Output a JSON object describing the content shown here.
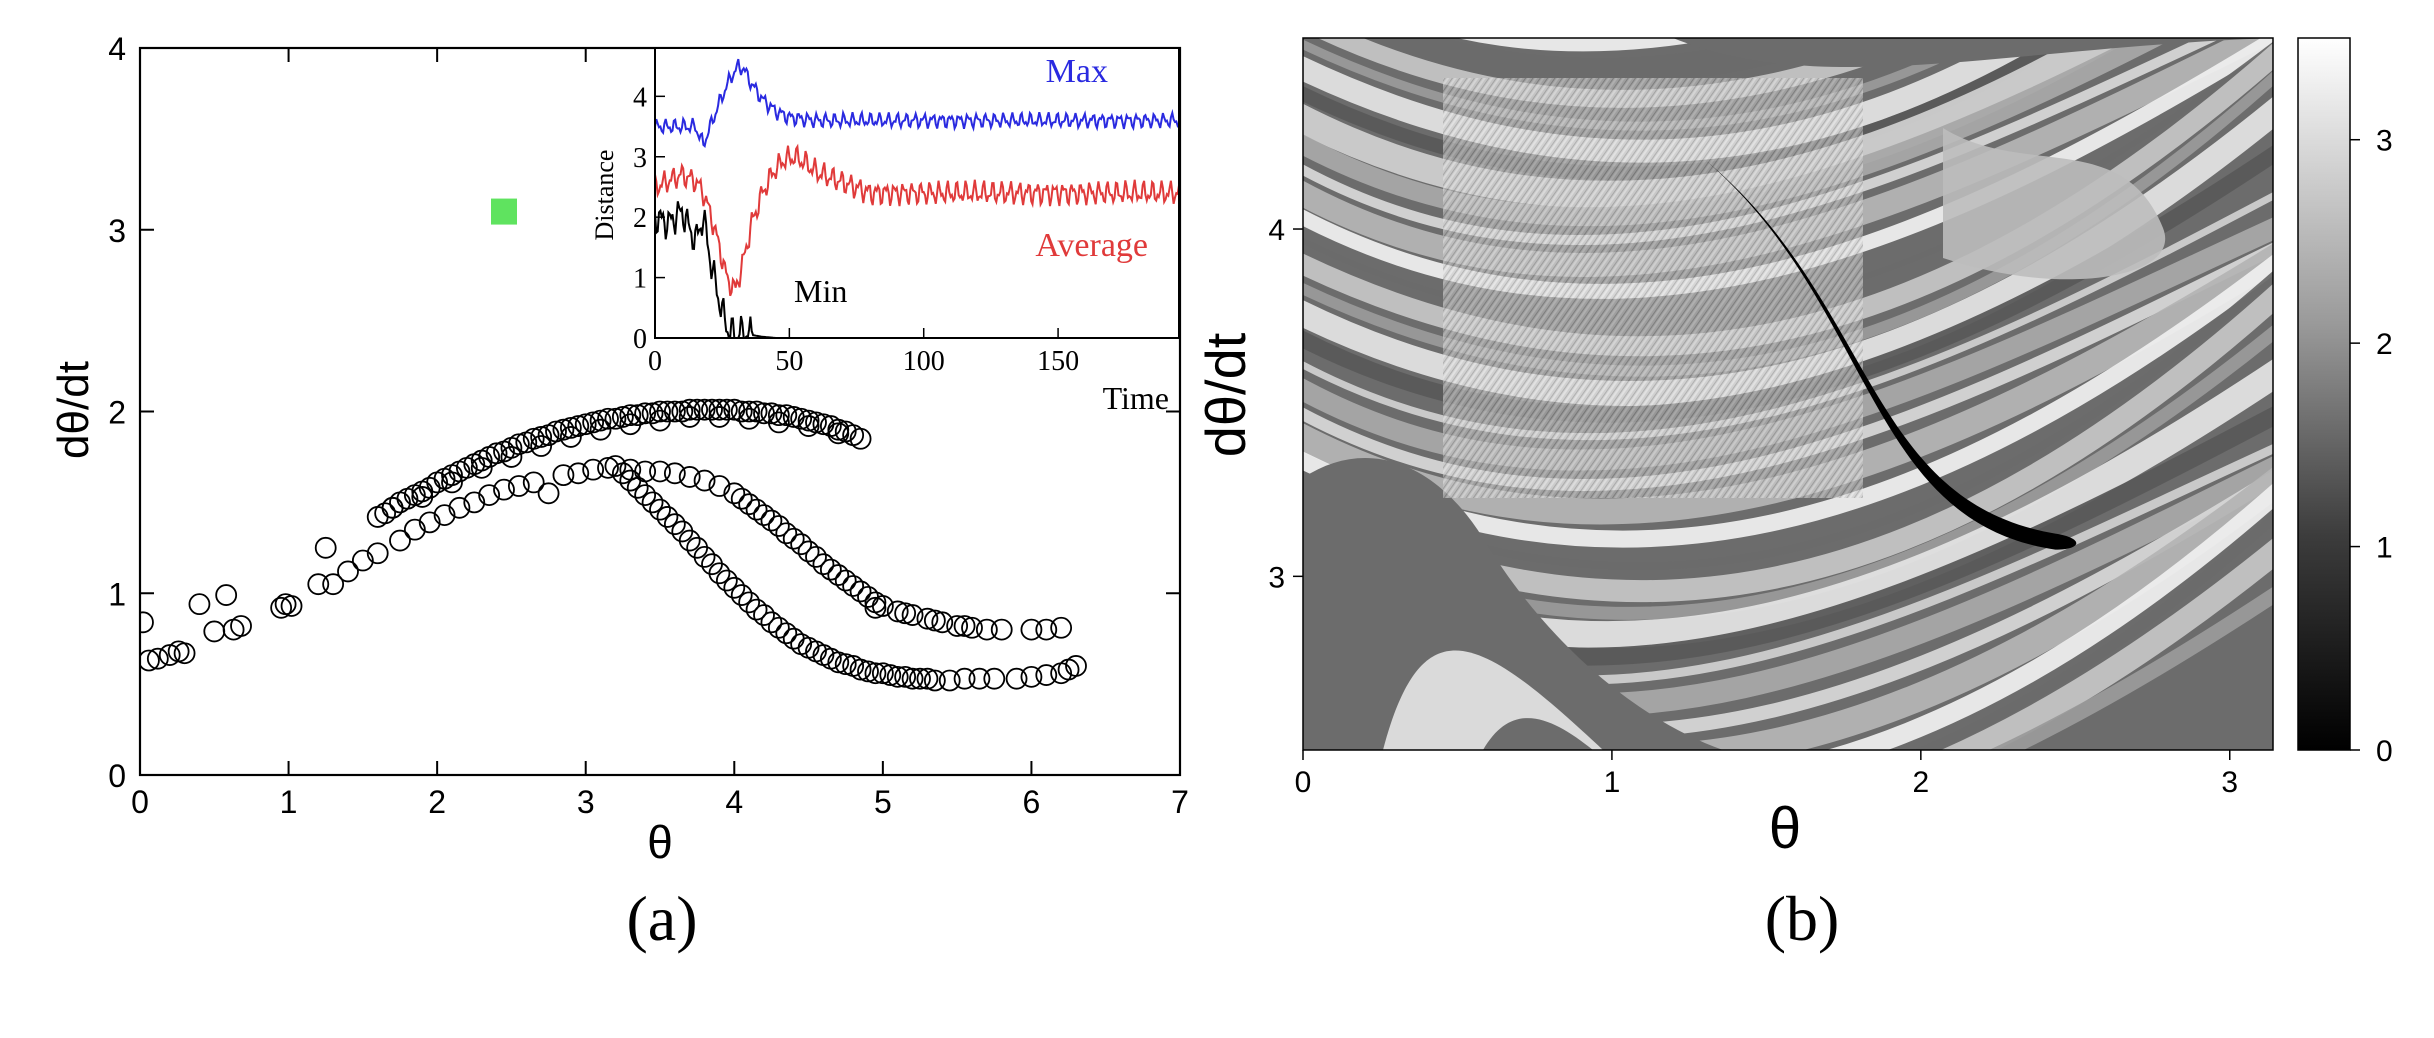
{
  "panel_a_label": "(a)",
  "panel_b_label": "(b)",
  "chart_data": [
    {
      "type": "scatter",
      "xlabel": "θ",
      "ylabel": "dθ/dt",
      "xlim": [
        0,
        7
      ],
      "ylim": [
        0,
        4
      ],
      "xticks": [
        "0",
        "1",
        "2",
        "3",
        "4",
        "5",
        "6",
        "7"
      ],
      "yticks": [
        "0",
        "1",
        "2",
        "3",
        "4"
      ],
      "grid": false,
      "marker_color": "#000000",
      "highlight_marker": {
        "x": 2.45,
        "y": 3.1,
        "color": "#5fe35f"
      },
      "series": [
        {
          "points": [
            [
              0.02,
              0.84
            ],
            [
              0.06,
              0.63
            ],
            [
              0.12,
              0.64
            ],
            [
              0.2,
              0.66
            ],
            [
              0.26,
              0.68
            ],
            [
              0.3,
              0.67
            ],
            [
              0.4,
              0.94
            ],
            [
              0.5,
              0.79
            ],
            [
              0.58,
              0.99
            ],
            [
              0.63,
              0.8
            ],
            [
              0.68,
              0.82
            ],
            [
              0.95,
              0.92
            ],
            [
              0.98,
              0.94
            ],
            [
              1.02,
              0.93
            ],
            [
              1.2,
              1.05
            ],
            [
              1.25,
              1.25
            ],
            [
              1.3,
              1.05
            ],
            [
              1.4,
              1.12
            ],
            [
              1.5,
              1.18
            ],
            [
              1.6,
              1.22
            ],
            [
              1.75,
              1.29
            ],
            [
              1.85,
              1.35
            ],
            [
              1.95,
              1.39
            ],
            [
              2.05,
              1.43
            ],
            [
              2.15,
              1.47
            ],
            [
              2.25,
              1.5
            ],
            [
              2.35,
              1.54
            ],
            [
              2.45,
              1.57
            ],
            [
              2.55,
              1.59
            ],
            [
              2.65,
              1.61
            ],
            [
              2.75,
              1.55
            ],
            [
              2.85,
              1.65
            ],
            [
              2.95,
              1.66
            ],
            [
              3.05,
              1.68
            ],
            [
              3.15,
              1.69
            ],
            [
              1.6,
              1.42
            ],
            [
              1.65,
              1.44
            ],
            [
              1.7,
              1.47
            ],
            [
              1.75,
              1.5
            ],
            [
              1.8,
              1.52
            ],
            [
              1.85,
              1.54
            ],
            [
              1.9,
              1.56
            ],
            [
              1.95,
              1.58
            ],
            [
              2.0,
              1.61
            ],
            [
              2.05,
              1.63
            ],
            [
              2.1,
              1.65
            ],
            [
              2.15,
              1.67
            ],
            [
              2.2,
              1.69
            ],
            [
              2.25,
              1.71
            ],
            [
              2.3,
              1.73
            ],
            [
              2.35,
              1.75
            ],
            [
              2.4,
              1.77
            ],
            [
              2.45,
              1.78
            ],
            [
              2.5,
              1.8
            ],
            [
              2.55,
              1.82
            ],
            [
              2.6,
              1.83
            ],
            [
              2.65,
              1.85
            ],
            [
              2.7,
              1.86
            ],
            [
              2.75,
              1.87
            ],
            [
              2.8,
              1.89
            ],
            [
              2.85,
              1.9
            ],
            [
              2.9,
              1.91
            ],
            [
              2.95,
              1.92
            ],
            [
              3.0,
              1.93
            ],
            [
              3.05,
              1.94
            ],
            [
              3.1,
              1.95
            ],
            [
              3.15,
              1.96
            ],
            [
              3.2,
              1.96
            ],
            [
              3.25,
              1.97
            ],
            [
              3.3,
              1.98
            ],
            [
              3.35,
              1.98
            ],
            [
              3.4,
              1.99
            ],
            [
              3.45,
              1.99
            ],
            [
              3.5,
              2.0
            ],
            [
              3.55,
              2.0
            ],
            [
              3.6,
              2.0
            ],
            [
              3.65,
              2.0
            ],
            [
              3.7,
              2.01
            ],
            [
              3.75,
              2.01
            ],
            [
              3.8,
              2.01
            ],
            [
              3.85,
              2.01
            ],
            [
              3.9,
              2.01
            ],
            [
              3.95,
              2.01
            ],
            [
              4.0,
              2.01
            ],
            [
              4.05,
              2.0
            ],
            [
              4.1,
              2.0
            ],
            [
              4.15,
              2.0
            ],
            [
              4.2,
              1.99
            ],
            [
              4.25,
              1.99
            ],
            [
              4.3,
              1.98
            ],
            [
              4.35,
              1.98
            ],
            [
              4.4,
              1.97
            ],
            [
              4.45,
              1.96
            ],
            [
              4.5,
              1.95
            ],
            [
              4.55,
              1.94
            ],
            [
              4.6,
              1.93
            ],
            [
              4.65,
              1.92
            ],
            [
              4.7,
              1.9
            ],
            [
              4.75,
              1.89
            ],
            [
              4.8,
              1.87
            ],
            [
              4.85,
              1.85
            ],
            [
              1.7,
              1.47
            ],
            [
              1.9,
              1.53
            ],
            [
              2.1,
              1.61
            ],
            [
              2.3,
              1.69
            ],
            [
              2.5,
              1.75
            ],
            [
              2.7,
              1.81
            ],
            [
              2.9,
              1.86
            ],
            [
              3.1,
              1.9
            ],
            [
              3.3,
              1.93
            ],
            [
              3.5,
              1.95
            ],
            [
              3.7,
              1.97
            ],
            [
              3.9,
              1.97
            ],
            [
              4.1,
              1.96
            ],
            [
              4.3,
              1.94
            ],
            [
              4.5,
              1.92
            ],
            [
              4.7,
              1.88
            ],
            [
              3.2,
              1.7
            ],
            [
              3.25,
              1.66
            ],
            [
              3.3,
              1.62
            ],
            [
              3.35,
              1.58
            ],
            [
              3.4,
              1.54
            ],
            [
              3.45,
              1.5
            ],
            [
              3.5,
              1.46
            ],
            [
              3.55,
              1.42
            ],
            [
              3.6,
              1.38
            ],
            [
              3.65,
              1.34
            ],
            [
              3.7,
              1.29
            ],
            [
              3.75,
              1.25
            ],
            [
              3.8,
              1.2
            ],
            [
              3.85,
              1.16
            ],
            [
              3.9,
              1.11
            ],
            [
              3.95,
              1.07
            ],
            [
              4.0,
              1.03
            ],
            [
              4.05,
              0.99
            ],
            [
              4.1,
              0.95
            ],
            [
              4.15,
              0.91
            ],
            [
              4.2,
              0.88
            ],
            [
              4.25,
              0.84
            ],
            [
              4.3,
              0.81
            ],
            [
              4.35,
              0.78
            ],
            [
              4.4,
              0.75
            ],
            [
              4.45,
              0.72
            ],
            [
              4.5,
              0.7
            ],
            [
              4.55,
              0.68
            ],
            [
              4.6,
              0.66
            ],
            [
              4.65,
              0.64
            ],
            [
              4.7,
              0.62
            ],
            [
              4.75,
              0.61
            ],
            [
              4.8,
              0.6
            ],
            [
              4.85,
              0.58
            ],
            [
              4.9,
              0.57
            ],
            [
              4.95,
              0.56
            ],
            [
              5.0,
              0.56
            ],
            [
              5.05,
              0.55
            ],
            [
              5.1,
              0.54
            ],
            [
              5.15,
              0.54
            ],
            [
              5.2,
              0.53
            ],
            [
              5.25,
              0.53
            ],
            [
              5.3,
              0.53
            ],
            [
              5.35,
              0.52
            ],
            [
              5.45,
              0.52
            ],
            [
              5.55,
              0.53
            ],
            [
              5.65,
              0.53
            ],
            [
              5.75,
              0.53
            ],
            [
              5.9,
              0.53
            ],
            [
              6.0,
              0.54
            ],
            [
              6.1,
              0.55
            ],
            [
              6.2,
              0.56
            ],
            [
              6.25,
              0.58
            ],
            [
              6.3,
              0.6
            ],
            [
              3.3,
              1.68
            ],
            [
              3.4,
              1.67
            ],
            [
              3.5,
              1.67
            ],
            [
              3.6,
              1.66
            ],
            [
              3.7,
              1.64
            ],
            [
              3.8,
              1.62
            ],
            [
              3.9,
              1.59
            ],
            [
              4.0,
              1.55
            ],
            [
              4.05,
              1.52
            ],
            [
              4.1,
              1.49
            ],
            [
              4.15,
              1.46
            ],
            [
              4.2,
              1.43
            ],
            [
              4.25,
              1.4
            ],
            [
              4.3,
              1.37
            ],
            [
              4.35,
              1.33
            ],
            [
              4.4,
              1.3
            ],
            [
              4.45,
              1.27
            ],
            [
              4.5,
              1.23
            ],
            [
              4.55,
              1.2
            ],
            [
              4.6,
              1.16
            ],
            [
              4.65,
              1.13
            ],
            [
              4.7,
              1.1
            ],
            [
              4.75,
              1.07
            ],
            [
              4.8,
              1.04
            ],
            [
              4.85,
              1.01
            ],
            [
              4.9,
              0.98
            ],
            [
              4.95,
              0.95
            ],
            [
              5.0,
              0.93
            ],
            [
              5.1,
              0.9
            ],
            [
              5.2,
              0.88
            ],
            [
              5.3,
              0.86
            ],
            [
              5.4,
              0.84
            ],
            [
              5.5,
              0.82
            ],
            [
              5.6,
              0.81
            ],
            [
              5.7,
              0.8
            ],
            [
              5.8,
              0.8
            ],
            [
              6.0,
              0.8
            ],
            [
              6.1,
              0.8
            ],
            [
              6.2,
              0.81
            ],
            [
              4.95,
              0.92
            ],
            [
              5.15,
              0.89
            ],
            [
              5.35,
              0.85
            ],
            [
              5.55,
              0.82
            ]
          ]
        }
      ],
      "inset": {
        "type": "line",
        "xlabel": "Time",
        "ylabel": "Distance",
        "xlim": [
          0,
          195
        ],
        "ylim": [
          0,
          4.8
        ],
        "xticks": [
          "0",
          "50",
          "100",
          "150"
        ],
        "yticks": [
          "0",
          "1",
          "2",
          "3",
          "4"
        ],
        "series": [
          {
            "name": "Max",
            "color": "#2a2ae0",
            "x": [
              0,
              5,
              10,
              15,
              18,
              21,
              24,
              28,
              31,
              33,
              36,
              40,
              45,
              50,
              60,
              80,
              100,
              120,
              140,
              160,
              180,
              195
            ],
            "y": [
              3.5,
              3.5,
              3.5,
              3.5,
              3.2,
              3.55,
              3.9,
              4.3,
              4.5,
              4.45,
              4.2,
              3.95,
              3.75,
              3.65,
              3.6,
              3.6,
              3.6,
              3.6,
              3.6,
              3.6,
              3.6,
              3.6
            ],
            "wiggle": 0.14
          },
          {
            "name": "Average",
            "color": "#e03a3a",
            "x": [
              0,
              5,
              10,
              15,
              18,
              21,
              24,
              27,
              30,
              33,
              36,
              40,
              44,
              48,
              52,
              56,
              60,
              80,
              100,
              120,
              140,
              160,
              180,
              195
            ],
            "y": [
              2.5,
              2.6,
              2.7,
              2.6,
              2.4,
              2.0,
              1.5,
              0.95,
              0.8,
              1.3,
              1.9,
              2.4,
              2.75,
              2.95,
              3.0,
              2.9,
              2.75,
              2.4,
              2.4,
              2.4,
              2.4,
              2.4,
              2.4,
              2.4
            ],
            "wiggle": 0.22
          },
          {
            "name": "Min",
            "color": "#000000",
            "x": [
              0,
              5,
              10,
              15,
              18,
              21,
              24,
              27,
              30,
              33,
              36,
              40,
              45,
              50,
              60,
              80,
              120,
              160,
              195
            ],
            "y": [
              2.0,
              1.9,
              2.1,
              1.6,
              2.0,
              1.2,
              0.6,
              0.15,
              0.05,
              0.1,
              0.05,
              0.02,
              0.0,
              0.0,
              0.0,
              0.0,
              0.0,
              0.0,
              0.0
            ],
            "wiggle": 0.3
          }
        ]
      }
    },
    {
      "type": "heatmap",
      "xlabel": "θ",
      "ylabel": "dθ/dt",
      "xlim": [
        0,
        3.14
      ],
      "ylim": [
        2.5,
        4.55
      ],
      "xticks": [
        "0",
        "1",
        "2",
        "3"
      ],
      "yticks": [
        "3",
        "4"
      ],
      "colorbar": {
        "min": 0,
        "max": 3.5,
        "ticks": [
          "0",
          "1",
          "2",
          "3"
        ],
        "color_low": "#000000",
        "color_high": "#ffffff"
      },
      "trajectory_color": "#000000"
    }
  ]
}
